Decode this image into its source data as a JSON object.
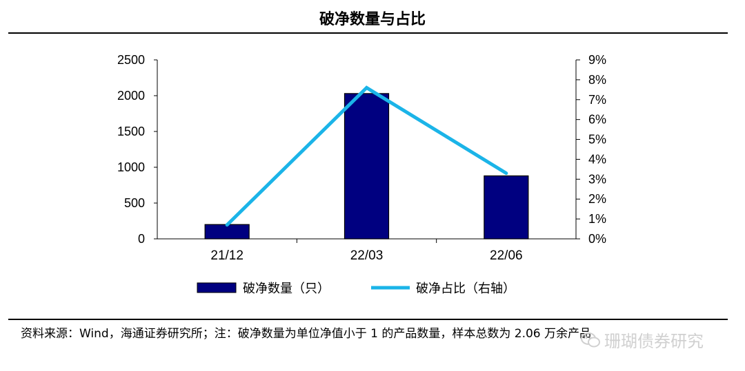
{
  "header": {
    "title": "破净数量与占比"
  },
  "footer": {
    "source": "资料来源：Wind，海通证券研究所；注：破净数量为单位净值小于 1 的产品数量，样本总数为 2.06 万余产品"
  },
  "watermark": {
    "text": "珊瑚债券研究",
    "icon": "wechat-icon"
  },
  "colors": {
    "bar": "#000080",
    "bar_stroke": "#000000",
    "line": "#1BB4E8",
    "axis": "#000000"
  },
  "chart_data": {
    "type": "bar",
    "categories": [
      "21/12",
      "22/03",
      "22/06"
    ],
    "series": [
      {
        "name": "破净数量（只）",
        "type": "bar",
        "axis": "left",
        "values": [
          200,
          2030,
          880
        ]
      },
      {
        "name": "破净占比（右轴）",
        "type": "line",
        "axis": "right",
        "values": [
          0.7,
          7.6,
          3.3
        ]
      }
    ],
    "y_left": {
      "min": 0,
      "max": 2500,
      "step": 500,
      "ticks": [
        "0",
        "500",
        "1000",
        "1500",
        "2000",
        "2500"
      ]
    },
    "y_right": {
      "min": 0,
      "max": 9,
      "step": 1,
      "ticks": [
        "0%",
        "1%",
        "2%",
        "3%",
        "4%",
        "5%",
        "6%",
        "7%",
        "8%",
        "9%"
      ]
    },
    "legend": {
      "position": "bottom",
      "entries": [
        "破净数量（只）",
        "破净占比（右轴）"
      ]
    },
    "grid": false
  }
}
